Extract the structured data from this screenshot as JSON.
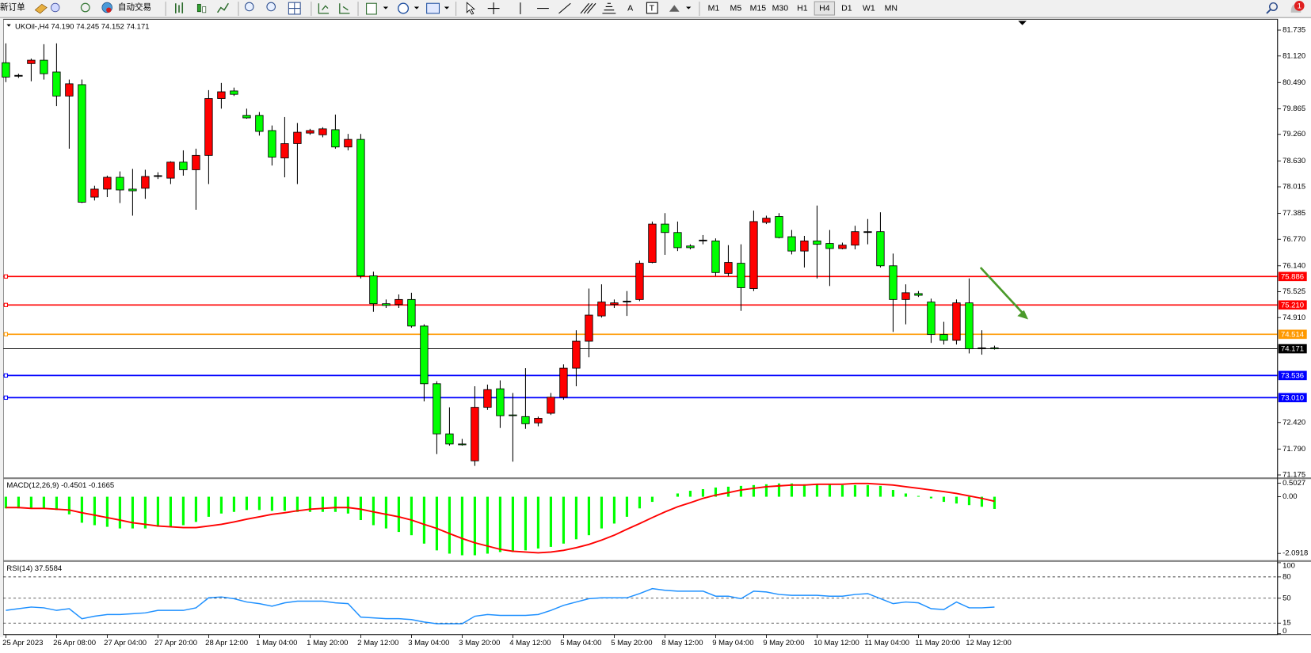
{
  "toolbar": {
    "new_order": "新订单",
    "auto_trading": "自动交易",
    "text_tool": "A",
    "label_tool": "T",
    "timeframes": [
      "M1",
      "M5",
      "M15",
      "M30",
      "H1",
      "H4",
      "D1",
      "W1",
      "MN"
    ],
    "notifications": "1"
  },
  "chart_data": [
    {
      "type": "candlestick",
      "title": "UKOil-,H4  74.190 74.245 74.152 74.171",
      "up_color": "#ff0000",
      "down_color": "#00ff00",
      "categories": [
        "25 Apr 2023",
        null,
        null,
        null,
        "26 Apr 08:00",
        null,
        null,
        null,
        "27 Apr 04:00",
        null,
        null,
        null,
        "27 Apr 20:00",
        null,
        null,
        null,
        "28 Apr 12:00",
        null,
        null,
        null,
        "1 May 04:00",
        null,
        null,
        null,
        "1 May 20:00",
        null,
        null,
        null,
        "2 May 12:00",
        null,
        null,
        null,
        "3 May 04:00",
        null,
        null,
        null,
        "3 May 20:00",
        null,
        null,
        null,
        "4 May 12:00",
        null,
        null,
        null,
        "5 May 04:00",
        null,
        null,
        null,
        "5 May 20:00",
        null,
        null,
        null,
        "8 May 12:00",
        null,
        null,
        null,
        "9 May 04:00",
        null,
        null,
        null,
        "9 May 20:00",
        null,
        null,
        null,
        "10 May 12:00",
        null,
        null,
        null,
        "11 May 04:00",
        null,
        null,
        null,
        "11 May 20:00",
        null,
        null,
        null,
        "12 May 12:00",
        null,
        null
      ],
      "candles": [
        [
          80.96,
          81.42,
          80.5,
          80.62
        ],
        [
          80.66,
          80.7,
          80.6,
          80.66
        ],
        [
          80.94,
          81.06,
          80.52,
          81.02
        ],
        [
          81.02,
          81.4,
          80.56,
          80.7
        ],
        [
          80.74,
          81.42,
          79.93,
          80.17
        ],
        [
          80.17,
          80.56,
          78.92,
          80.46
        ],
        [
          80.44,
          80.56,
          77.63,
          77.65
        ],
        [
          77.77,
          78.04,
          77.69,
          77.96
        ],
        [
          77.96,
          78.28,
          77.77,
          78.24
        ],
        [
          78.24,
          78.38,
          77.63,
          77.94
        ],
        [
          77.96,
          78.44,
          77.33,
          77.92
        ],
        [
          77.98,
          78.42,
          77.73,
          78.26
        ],
        [
          78.28,
          78.36,
          78.2,
          78.28
        ],
        [
          78.22,
          78.62,
          78.08,
          78.6
        ],
        [
          78.6,
          78.88,
          78.28,
          78.42
        ],
        [
          78.42,
          78.92,
          77.47,
          78.76
        ],
        [
          78.76,
          80.31,
          78.08,
          80.11
        ],
        [
          80.11,
          80.48,
          79.87,
          80.27
        ],
        [
          80.29,
          80.37,
          80.17,
          80.21
        ],
        [
          79.71,
          79.87,
          79.63,
          79.65
        ],
        [
          79.71,
          79.79,
          79.23,
          79.33
        ],
        [
          79.35,
          79.47,
          78.52,
          78.72
        ],
        [
          78.7,
          79.67,
          78.24,
          79.04
        ],
        [
          79.04,
          79.53,
          78.08,
          79.31
        ],
        [
          79.29,
          79.39,
          79.25,
          79.35
        ],
        [
          79.25,
          79.43,
          79.19,
          79.39
        ],
        [
          79.37,
          79.73,
          78.92,
          78.96
        ],
        [
          78.96,
          79.27,
          78.88,
          79.14
        ],
        [
          79.14,
          79.27,
          75.84,
          75.9
        ],
        [
          75.9,
          76.0,
          75.05,
          75.24
        ],
        [
          75.24,
          75.34,
          75.14,
          75.2
        ],
        [
          75.22,
          75.46,
          75.14,
          75.34
        ],
        [
          75.34,
          75.5,
          74.67,
          74.71
        ],
        [
          74.71,
          74.75,
          72.92,
          73.34
        ],
        [
          73.34,
          73.4,
          71.67,
          72.15
        ],
        [
          72.15,
          72.78,
          71.87,
          71.91
        ],
        [
          71.91,
          72.03,
          71.87,
          71.89
        ],
        [
          71.51,
          73.28,
          71.39,
          72.78
        ],
        [
          72.78,
          73.32,
          72.72,
          73.2
        ],
        [
          73.22,
          73.42,
          72.29,
          72.58
        ],
        [
          72.6,
          73.12,
          71.49,
          72.58
        ],
        [
          72.56,
          73.71,
          72.27,
          72.39
        ],
        [
          72.41,
          72.56,
          72.33,
          72.52
        ],
        [
          72.64,
          73.12,
          72.6,
          73.02
        ],
        [
          73.02,
          73.8,
          72.96,
          73.71
        ],
        [
          73.71,
          74.61,
          73.28,
          74.35
        ],
        [
          74.35,
          75.6,
          73.97,
          74.97
        ],
        [
          74.95,
          75.7,
          74.91,
          75.28
        ],
        [
          75.22,
          75.34,
          75.14,
          75.26
        ],
        [
          75.3,
          75.54,
          74.95,
          75.3
        ],
        [
          75.34,
          76.26,
          75.3,
          76.2
        ],
        [
          76.22,
          77.19,
          76.2,
          77.13
        ],
        [
          77.13,
          77.39,
          76.4,
          76.93
        ],
        [
          76.93,
          77.19,
          76.49,
          76.57
        ],
        [
          76.61,
          76.65,
          76.53,
          76.57
        ],
        [
          76.75,
          76.87,
          76.65,
          76.75
        ],
        [
          76.73,
          76.79,
          75.9,
          75.98
        ],
        [
          75.96,
          76.63,
          75.9,
          76.22
        ],
        [
          76.2,
          76.65,
          75.07,
          75.62
        ],
        [
          75.6,
          77.45,
          75.54,
          77.19
        ],
        [
          77.17,
          77.33,
          77.13,
          77.27
        ],
        [
          77.31,
          77.39,
          76.79,
          76.81
        ],
        [
          76.83,
          76.99,
          76.41,
          76.49
        ],
        [
          76.49,
          76.85,
          76.1,
          76.73
        ],
        [
          76.73,
          77.57,
          75.84,
          76.65
        ],
        [
          76.67,
          76.99,
          75.66,
          76.55
        ],
        [
          76.55,
          76.69,
          76.53,
          76.63
        ],
        [
          76.63,
          77.09,
          76.53,
          76.95
        ],
        [
          76.95,
          77.25,
          76.65,
          76.95
        ],
        [
          76.95,
          77.41,
          76.1,
          76.14
        ],
        [
          76.14,
          76.43,
          74.57,
          75.34
        ],
        [
          75.34,
          75.7,
          74.75,
          75.5
        ],
        [
          75.48,
          75.54,
          75.4,
          75.44
        ],
        [
          75.28,
          75.36,
          74.31,
          74.51
        ],
        [
          74.51,
          74.81,
          74.27,
          74.37
        ],
        [
          74.37,
          75.34,
          74.27,
          75.26
        ],
        [
          75.26,
          75.84,
          74.06,
          74.17
        ],
        [
          74.19,
          74.61,
          74.03,
          74.19
        ],
        [
          74.19,
          74.245,
          74.152,
          74.171
        ]
      ],
      "ylim": [
        71.116,
        81.973
      ],
      "yticks": [
        81.735,
        {
          "value": 81.12,
          "label": "81.120"
        },
        {
          "value": 80.49,
          "label": "80.490"
        },
        79.865,
        {
          "value": 79.26,
          "label": "79.260"
        },
        {
          "value": 78.63,
          "label": "78.630"
        },
        78.015,
        77.385,
        {
          "value": 76.77,
          "label": "76.770"
        },
        {
          "value": 76.14,
          "label": "76.140"
        },
        75.525,
        {
          "value": 74.91,
          "label": "74.910"
        },
        {
          "value": 72.42,
          "label": "72.420"
        },
        {
          "value": 71.79,
          "label": "71.790"
        },
        71.175
      ],
      "levels": [
        {
          "value": 75.886,
          "color": "#ff0000"
        },
        {
          "value": 75.21,
          "label": "75.210",
          "color": "#ff0000"
        },
        {
          "value": 74.514,
          "color": "#ff9900"
        },
        {
          "value": 74.171,
          "color": "#000000"
        },
        {
          "value": 73.536,
          "color": "#0000ff"
        },
        {
          "value": 73.01,
          "label": "73.010",
          "color": "#0000ff"
        }
      ]
    },
    {
      "type": "macd",
      "title": "MACD(12,26,9) -0.4501 -0.1665",
      "hist_color": "#00ff00",
      "signal_color": "#ff0000",
      "histogram": [
        -0.43,
        -0.43,
        -0.43,
        -0.43,
        -0.49,
        -0.65,
        -0.96,
        -1.05,
        -1.11,
        -1.17,
        -1.17,
        -1.17,
        -1.11,
        -1.11,
        -1.05,
        -0.93,
        -0.74,
        -0.62,
        -0.56,
        -0.49,
        -0.49,
        -0.52,
        -0.52,
        -0.56,
        -0.56,
        -0.56,
        -0.56,
        -0.62,
        -0.86,
        -1.05,
        -1.17,
        -1.3,
        -1.42,
        -1.73,
        -1.98,
        -2.1,
        -2.16,
        -2.16,
        -2.1,
        -2.04,
        -2.04,
        -1.98,
        -1.91,
        -1.85,
        -1.73,
        -1.57,
        -1.42,
        -1.17,
        -0.99,
        -0.74,
        -0.43,
        -0.19,
        0,
        0.12,
        0.22,
        0.28,
        0.34,
        0.37,
        0.4,
        0.43,
        0.46,
        0.49,
        0.49,
        0.46,
        0.46,
        0.46,
        0.43,
        0.43,
        0.43,
        0.4,
        0.25,
        0.12,
        0.03,
        -0.06,
        -0.19,
        -0.25,
        -0.31,
        -0.37,
        -0.4501
      ],
      "signal": [
        -0.4,
        -0.4,
        -0.43,
        -0.43,
        -0.46,
        -0.49,
        -0.59,
        -0.68,
        -0.77,
        -0.86,
        -0.96,
        -1.02,
        -1.08,
        -1.11,
        -1.14,
        -1.14,
        -1.08,
        -1.02,
        -0.93,
        -0.83,
        -0.74,
        -0.65,
        -0.59,
        -0.52,
        -0.46,
        -0.43,
        -0.4,
        -0.4,
        -0.46,
        -0.56,
        -0.65,
        -0.74,
        -0.86,
        -1.02,
        -1.17,
        -1.36,
        -1.54,
        -1.7,
        -1.82,
        -1.94,
        -2.01,
        -2.04,
        -2.07,
        -2.04,
        -1.98,
        -1.88,
        -1.76,
        -1.6,
        -1.42,
        -1.2,
        -0.99,
        -0.77,
        -0.56,
        -0.37,
        -0.22,
        -0.06,
        0.06,
        0.15,
        0.25,
        0.31,
        0.37,
        0.4,
        0.43,
        0.43,
        0.46,
        0.46,
        0.46,
        0.49,
        0.49,
        0.46,
        0.43,
        0.37,
        0.31,
        0.25,
        0.19,
        0.12,
        0.03,
        -0.06,
        -0.1665
      ],
      "ylim": [
        -2.28,
        0.62
      ],
      "yticks": [
        0.5027,
        {
          "value": 0,
          "label": "0.00"
        },
        -2.0918
      ]
    },
    {
      "type": "line",
      "title": "RSI(14) 37.5584",
      "color": "#1e90ff",
      "values": [
        32.9,
        35.3,
        37.6,
        36.5,
        32.9,
        35.3,
        21.2,
        24.7,
        27.1,
        27.1,
        28.2,
        29.4,
        32.9,
        32.9,
        32.9,
        36.5,
        50.6,
        51.8,
        49.4,
        44.7,
        42.4,
        38.8,
        43.5,
        45.9,
        45.9,
        45.9,
        43.5,
        42.4,
        23.5,
        22.4,
        21.2,
        21.2,
        20.0,
        16.5,
        14.1,
        14.1,
        14.1,
        24.7,
        27.1,
        25.9,
        25.9,
        25.9,
        27.1,
        32.9,
        40.0,
        44.7,
        49.4,
        50.6,
        50.6,
        50.6,
        56.5,
        63.5,
        61.2,
        60.0,
        60.0,
        60.0,
        52.9,
        52.9,
        49.4,
        60.0,
        58.8,
        55.3,
        54.1,
        54.1,
        54.1,
        52.9,
        52.9,
        55.3,
        56.5,
        49.4,
        42.4,
        44.7,
        43.5,
        35.3,
        34.1,
        44.7,
        36.5,
        36.5,
        37.5584
      ],
      "ylim": [
        0,
        100
      ],
      "yticks": [
        100,
        80,
        50,
        15,
        0
      ],
      "levels": [
        80,
        50,
        15
      ]
    }
  ]
}
